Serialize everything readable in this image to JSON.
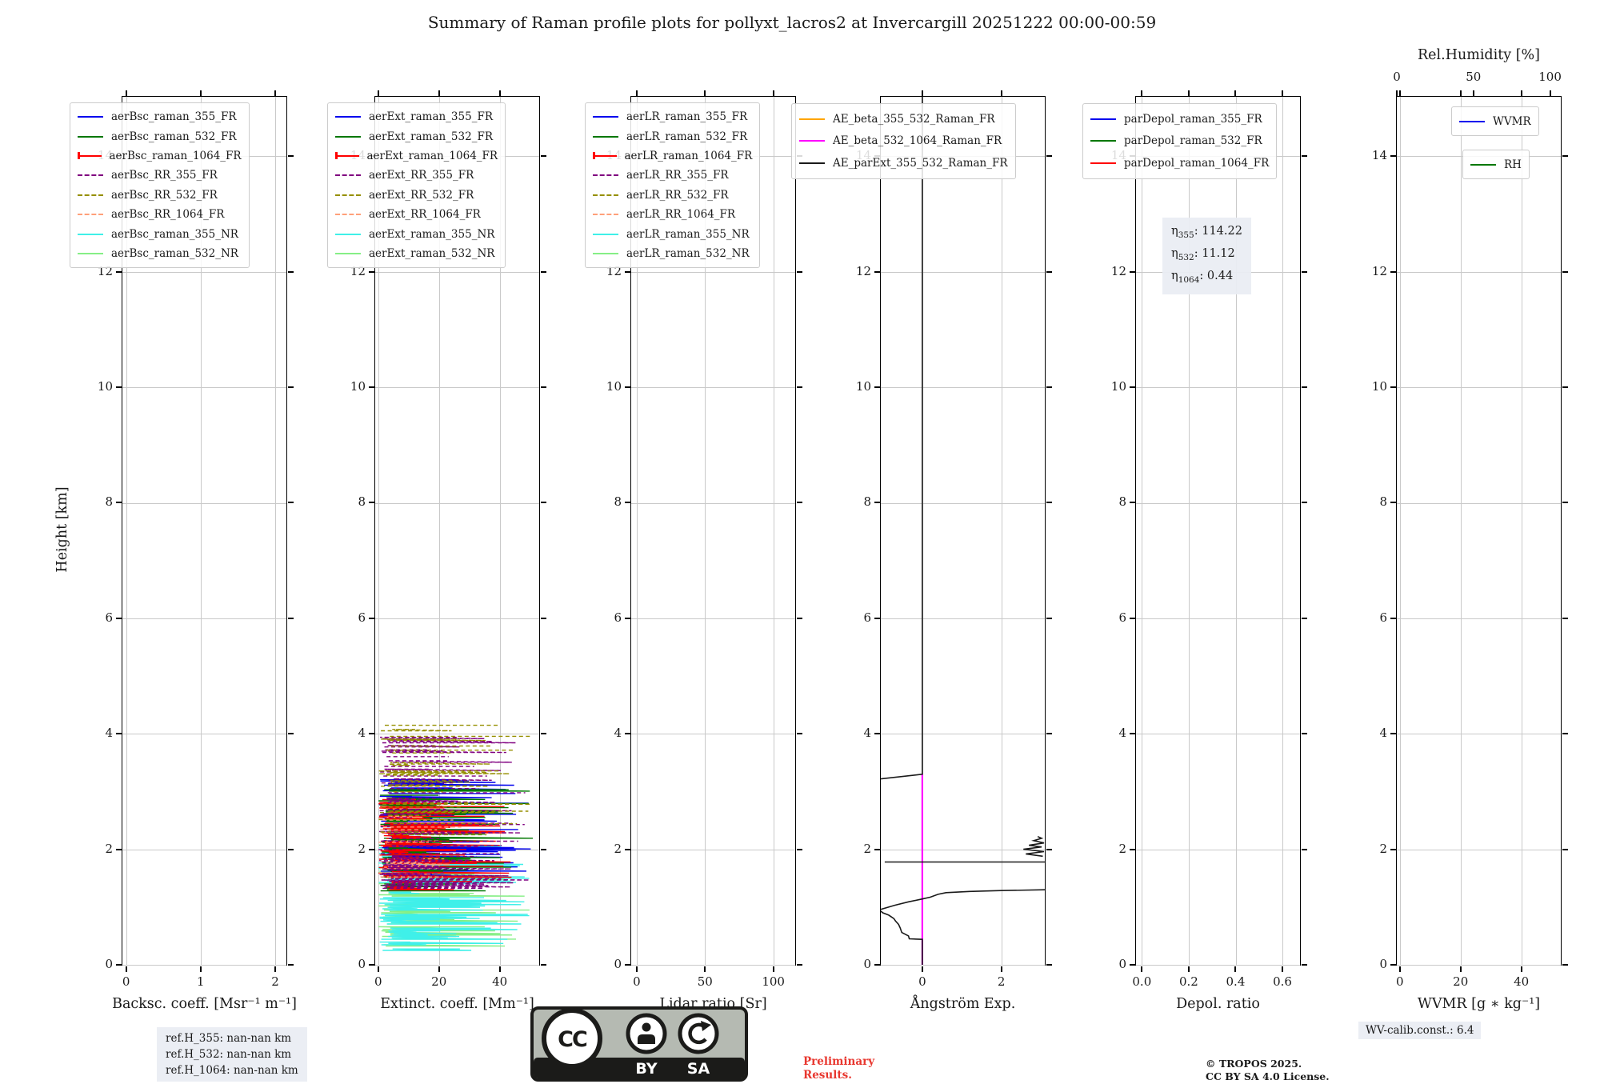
{
  "title": "Summary of Raman profile plots for pollyxt_lacros2 at Invercargill 20251222 00:00-00:59",
  "footer": {
    "preliminary_line1": "Preliminary",
    "preliminary_line2": "Results.",
    "credit_line1": "© TROPOS 2025.",
    "credit_line2": "CC BY SA 4.0 License.",
    "cc_badge": {
      "cc": "CC",
      "by": "BY",
      "sa": "SA"
    }
  },
  "annotations": {
    "ref_heights": [
      "ref.H_355: nan-nan km",
      "ref.H_532: nan-nan km",
      "ref.H_1064: nan-nan km"
    ],
    "wv_calib": "WV-calib.const.: 6.4",
    "eta": [
      {
        "symbol": "η",
        "sub": "355",
        "value": "114.22"
      },
      {
        "symbol": "η",
        "sub": "532",
        "value": "11.12"
      },
      {
        "symbol": "η",
        "sub": "1064",
        "value": "0.44"
      }
    ]
  },
  "chart_data": {
    "type": "line",
    "y_axis": {
      "label": "Height [km]",
      "ticks": [
        0,
        2,
        4,
        6,
        8,
        10,
        12,
        14
      ],
      "max": 15.03
    },
    "panels": [
      {
        "id": "backscatter",
        "xlabel": "Backsc. coeff. [Msr⁻¹ m⁻¹]",
        "xlim": [
          -0.05,
          2.15
        ],
        "xticks": {
          "values": [
            0,
            1,
            2
          ],
          "labels": [
            "0",
            "1",
            "2"
          ]
        },
        "legend": [
          {
            "label": "aerBsc_raman_355_FR",
            "color": "#0000ee",
            "dash": false
          },
          {
            "label": "aerBsc_raman_532_FR",
            "color": "#007700",
            "dash": false
          },
          {
            "label": "aerBsc_raman_1064_FR",
            "color": "#ff0000",
            "dash": false,
            "cap": true
          },
          {
            "label": "aerBsc_RR_355_FR",
            "color": "#800080",
            "dash": true
          },
          {
            "label": "aerBsc_RR_532_FR",
            "color": "#968f00",
            "dash": true
          },
          {
            "label": "aerBsc_RR_1064_FR",
            "color": "#ffa07a",
            "dash": true
          },
          {
            "label": "aerBsc_raman_355_NR",
            "color": "#3ff0e9",
            "dash": false
          },
          {
            "label": "aerBsc_raman_532_NR",
            "color": "#86ef86",
            "dash": false
          }
        ],
        "series": []
      },
      {
        "id": "extinction",
        "xlabel": "Extinct. coeff. [Mm⁻¹]",
        "xlim": [
          -1,
          53
        ],
        "xticks": {
          "values": [
            0,
            20,
            40
          ],
          "labels": [
            "0",
            "20",
            "40"
          ]
        },
        "legend": [
          {
            "label": "aerExt_raman_355_FR",
            "color": "#0000ee",
            "dash": false
          },
          {
            "label": "aerExt_raman_532_FR",
            "color": "#007700",
            "dash": false
          },
          {
            "label": "aerExt_raman_1064_FR",
            "color": "#ff0000",
            "dash": false,
            "cap": true
          },
          {
            "label": "aerExt_RR_355_FR",
            "color": "#800080",
            "dash": true
          },
          {
            "label": "aerExt_RR_532_FR",
            "color": "#968f00",
            "dash": true
          },
          {
            "label": "aerExt_RR_1064_FR",
            "color": "#ffa07a",
            "dash": true
          },
          {
            "label": "aerExt_raman_355_NR",
            "color": "#3ff0e9",
            "dash": false
          },
          {
            "label": "aerExt_raman_532_NR",
            "color": "#86ef86",
            "dash": false
          }
        ],
        "series": [
          {
            "name": "aerExt_raman_532_NR",
            "color": "#86ef86",
            "dash": false,
            "noisy": true,
            "height_range": [
              0.3,
              1.72
            ],
            "x_range": [
              0,
              51
            ],
            "density": 0.75
          },
          {
            "name": "aerExt_raman_355_NR",
            "color": "#3ff0e9",
            "dash": false,
            "noisy": true,
            "height_range": [
              0.25,
              2.1
            ],
            "x_range": [
              0,
              51
            ],
            "density": 0.8
          },
          {
            "name": "aerExt_raman_355_FR",
            "color": "#0000ee",
            "dash": false,
            "noisy": true,
            "height_range": [
              1.55,
              3.25
            ],
            "x_range": [
              0,
              51
            ],
            "density": 0.7
          },
          {
            "name": "aerExt_raman_532_FR",
            "color": "#007700",
            "dash": false,
            "noisy": true,
            "height_range": [
              1.28,
              3.05
            ],
            "x_range": [
              0,
              51
            ],
            "density": 0.7
          },
          {
            "name": "aerExt_raman_1064_FR",
            "color": "#ff0000",
            "dash": false,
            "noisy": true,
            "height_range": [
              1.3,
              2.95
            ],
            "x_range": [
              0,
              46
            ],
            "density": 0.7
          },
          {
            "name": "aerExt_RR_1064_FR",
            "color": "#ffa07a",
            "dash": true,
            "noisy": true,
            "height_range": [
              1.45,
              2.7
            ],
            "x_range": [
              0,
              30
            ],
            "density": 0.35
          },
          {
            "name": "aerExt_RR_355_FR",
            "color": "#800080",
            "dash": true,
            "noisy": true,
            "height_range": [
              1.3,
              3.97
            ],
            "x_range": [
              0,
              51
            ],
            "density": 0.6
          },
          {
            "name": "aerExt_RR_532_FR",
            "color": "#968f00",
            "dash": true,
            "noisy": true,
            "height_range": [
              2.18,
              4.16
            ],
            "x_range": [
              0,
              51
            ],
            "density": 0.5
          }
        ]
      },
      {
        "id": "lidar_ratio",
        "xlabel": "Lidar ratio [Sr]",
        "xlim": [
          -4,
          116
        ],
        "xticks": {
          "values": [
            0,
            50,
            100
          ],
          "labels": [
            "0",
            "50",
            "100"
          ]
        },
        "legend": [
          {
            "label": "aerLR_raman_355_FR",
            "color": "#0000ee",
            "dash": false
          },
          {
            "label": "aerLR_raman_532_FR",
            "color": "#007700",
            "dash": false
          },
          {
            "label": "aerLR_raman_1064_FR",
            "color": "#ff0000",
            "dash": false,
            "cap": true
          },
          {
            "label": "aerLR_RR_355_FR",
            "color": "#800080",
            "dash": true
          },
          {
            "label": "aerLR_RR_532_FR",
            "color": "#968f00",
            "dash": true
          },
          {
            "label": "aerLR_RR_1064_FR",
            "color": "#ffa07a",
            "dash": true
          },
          {
            "label": "aerLR_raman_355_NR",
            "color": "#3ff0e9",
            "dash": false
          },
          {
            "label": "aerLR_raman_532_NR",
            "color": "#86ef86",
            "dash": false
          }
        ],
        "series": []
      },
      {
        "id": "angstrom",
        "xlabel": "Ångström Exp.",
        "xlim": [
          -1.05,
          3.1
        ],
        "xticks": {
          "values": [
            0,
            2
          ],
          "labels": [
            "0",
            "2"
          ]
        },
        "legend": [
          {
            "label": "AE_beta_355_532_Raman_FR",
            "color": "#ffa500",
            "dash": false
          },
          {
            "label": "AE_beta_532_1064_Raman_FR",
            "color": "#ff00ff",
            "dash": false
          },
          {
            "label": "AE_parExt_355_532_Raman_FR",
            "color": "#1a1a1a",
            "dash": false
          }
        ],
        "series": [
          {
            "name": "AE_beta_532_1064_Raman_FR",
            "color": "#ff00ff",
            "width": 2.2,
            "segments": [
              [
                [
                  0,
                  0
                ],
                [
                  0,
                  3.3
                ]
              ]
            ]
          },
          {
            "name": "AE_parExt_355_532_Raman_FR",
            "color": "#1a1a1a",
            "width": 1.6,
            "segments": [
              [
                [
                  0,
                  15.03
                ],
                [
                  0,
                  3.3
                ],
                [
                  -1.05,
                  3.22
                ]
              ],
              [
                [
                  0,
                  0
                ],
                [
                  0,
                  0.44
                ],
                [
                  -0.33,
                  0.45
                ],
                [
                  -0.35,
                  0.5
                ],
                [
                  -0.52,
                  0.56
                ],
                [
                  -0.56,
                  0.64
                ],
                [
                  -0.6,
                  0.7
                ],
                [
                  -0.68,
                  0.76
                ],
                [
                  -0.72,
                  0.8
                ],
                [
                  -0.85,
                  0.86
                ],
                [
                  -1.0,
                  0.9
                ],
                [
                  -1.05,
                  0.93
                ]
              ],
              [
                [
                  -1.05,
                  0.96
                ],
                [
                  -0.7,
                  1.03
                ],
                [
                  -0.35,
                  1.09
                ],
                [
                  0,
                  1.14
                ],
                [
                  0.2,
                  1.17
                ],
                [
                  0.4,
                  1.22
                ],
                [
                  0.6,
                  1.25
                ],
                [
                  1.2,
                  1.27
                ],
                [
                  2.0,
                  1.285
                ],
                [
                  3.1,
                  1.3
                ]
              ],
              [
                [
                  -0.95,
                  1.78
                ],
                [
                  3.1,
                  1.78
                ]
              ],
              [
                [
                  3.05,
                  1.88
                ],
                [
                  2.62,
                  1.92
                ],
                [
                  3.08,
                  1.96
                ],
                [
                  2.56,
                  2.0
                ],
                [
                  3.02,
                  2.04
                ],
                [
                  2.7,
                  2.07
                ],
                [
                  3.08,
                  2.11
                ],
                [
                  2.82,
                  2.15
                ],
                [
                  3.02,
                  2.19
                ],
                [
                  2.92,
                  2.22
                ]
              ]
            ]
          }
        ]
      },
      {
        "id": "depol",
        "xlabel": "Depol. ratio",
        "xlim": [
          -0.025,
          0.675
        ],
        "xticks": {
          "values": [
            0,
            0.2,
            0.4,
            0.6
          ],
          "labels": [
            "0.0",
            "0.2",
            "0.4",
            "0.6"
          ]
        },
        "legend": [
          {
            "label": "parDepol_raman_355_FR",
            "color": "#0000ee",
            "dash": false
          },
          {
            "label": "parDepol_raman_532_FR",
            "color": "#007700",
            "dash": false
          },
          {
            "label": "parDepol_raman_1064_FR",
            "color": "#ff0000",
            "dash": false
          }
        ],
        "show_eta": true,
        "series": []
      },
      {
        "id": "wvmr",
        "xlabel": "WVMR [g ∗ kg⁻¹]",
        "xlim": [
          -1,
          53
        ],
        "xticks": {
          "values": [
            0,
            20,
            40
          ],
          "labels": [
            "0",
            "20",
            "40"
          ]
        },
        "top_axis": {
          "label": "Rel.Humidity [%]",
          "xlim": [
            0,
            107
          ],
          "xticks": {
            "values": [
              0,
              50,
              100
            ],
            "labels": [
              "0",
              "50",
              "100"
            ]
          }
        },
        "legend": [
          {
            "label": "WVMR",
            "color": "#0000ee",
            "dash": false
          }
        ],
        "legend2": [
          {
            "label": "RH",
            "color": "#007700",
            "dash": false
          }
        ],
        "series": []
      }
    ]
  }
}
